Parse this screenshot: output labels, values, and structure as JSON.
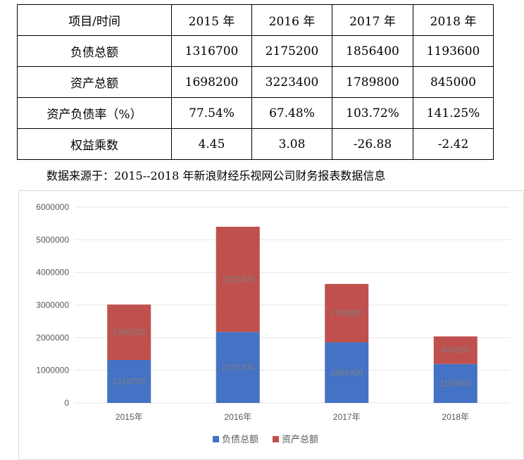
{
  "table": {
    "header": [
      "项目/时间",
      "2015 年",
      "2016 年",
      "2017 年",
      "2018 年"
    ],
    "rows": [
      [
        "负债总额",
        "1316700",
        "2175200",
        "1856400",
        "1193600"
      ],
      [
        "资产总额",
        "1698200",
        "3223400",
        "1789800",
        "845000"
      ],
      [
        "资产负债率（%）",
        "77.54%",
        "67.48%",
        "103.72%",
        "141.25%"
      ],
      [
        "权益乘数",
        "4.45",
        "3.08",
        "-26.88",
        "-2.42"
      ]
    ]
  },
  "source_note": "数据来源于：2015--2018 年新浪财经乐视网公司财务报表数据信息",
  "chart_data": {
    "type": "bar",
    "stacked": true,
    "categories": [
      "2015年",
      "2016年",
      "2017年",
      "2018年"
    ],
    "series": [
      {
        "name": "负债总额",
        "color": "#4472c4",
        "values": [
          1316700,
          2175200,
          1856400,
          1193600
        ]
      },
      {
        "name": "资产总额",
        "color": "#c0504d",
        "values": [
          1698200,
          3223400,
          1789800,
          845000
        ]
      }
    ],
    "ylim": [
      0,
      6000000
    ],
    "yticks": [
      0,
      1000000,
      2000000,
      3000000,
      4000000,
      5000000,
      6000000
    ],
    "ytick_labels": [
      "0",
      "1000000",
      "2000000",
      "3000000",
      "4000000",
      "5000000",
      "6000000"
    ],
    "grid": true,
    "legend": "bottom",
    "data_labels": true
  }
}
